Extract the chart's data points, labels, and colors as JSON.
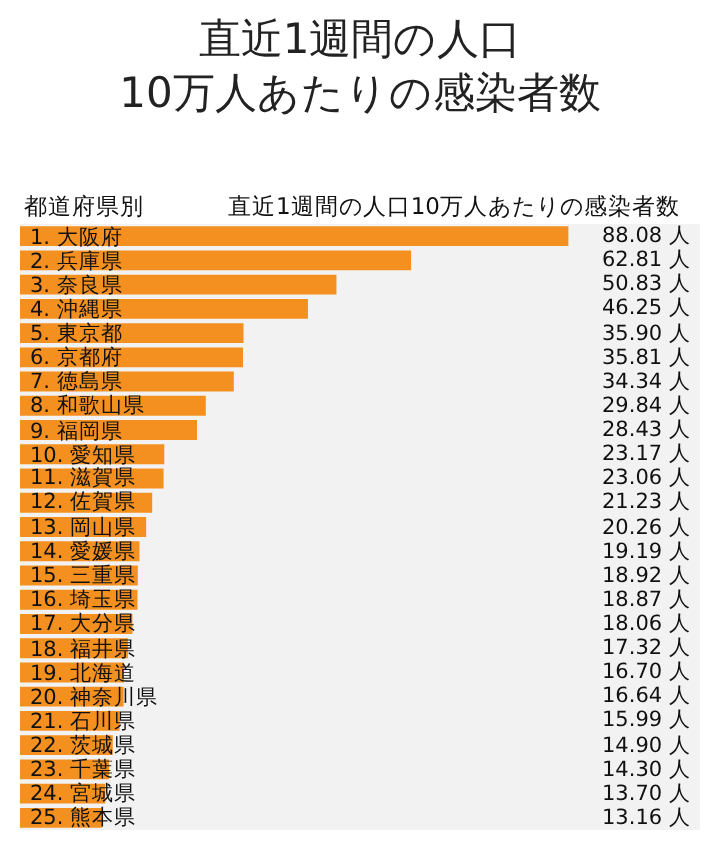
{
  "chart_data": {
    "type": "bar",
    "orientation": "horizontal",
    "title": "直近1週間の人口\n10万人あたりの感染者数",
    "annotations": [
      "都道府県別",
      "直近1週間の人口10万人あたりの感染者数"
    ],
    "categories": [
      "1. 大阪府",
      "2. 兵庫県",
      "3. 奈良県",
      "4. 沖縄県",
      "5. 東京都",
      "6. 京都府",
      "7. 徳島県",
      "8. 和歌山県",
      "9. 福岡県",
      "10. 愛知県",
      "11. 滋賀県",
      "12. 佐賀県",
      "13. 岡山県",
      "14. 愛媛県",
      "15. 三重県",
      "16. 埼玉県",
      "17. 大分県",
      "18. 福井県",
      "19. 北海道",
      "20. 神奈川県",
      "21. 石川県",
      "22. 茨城県",
      "23. 千葉県",
      "24. 宮城県",
      "25. 熊本県"
    ],
    "values": [
      88.08,
      62.81,
      50.83,
      46.25,
      35.9,
      35.81,
      34.34,
      29.84,
      28.43,
      23.17,
      23.06,
      21.23,
      20.26,
      19.19,
      18.92,
      18.87,
      18.06,
      17.32,
      16.7,
      16.64,
      15.99,
      14.9,
      14.3,
      13.7,
      13.16
    ],
    "value_labels": [
      "88.08 人",
      "62.81 人",
      "50.83 人",
      "46.25 人",
      "35.90 人",
      "35.81 人",
      "34.34 人",
      "29.84 人",
      "28.43 人",
      "23.17 人",
      "23.06 人",
      "21.23 人",
      "20.26 人",
      "19.19 人",
      "18.92 人",
      "18.87 人",
      "18.06 人",
      "17.32 人",
      "16.70 人",
      "16.64 人",
      "15.99 人",
      "14.90 人",
      "14.30 人",
      "13.70 人",
      "13.16 人"
    ],
    "color": "#f39020",
    "grid": false,
    "legend": false
  }
}
